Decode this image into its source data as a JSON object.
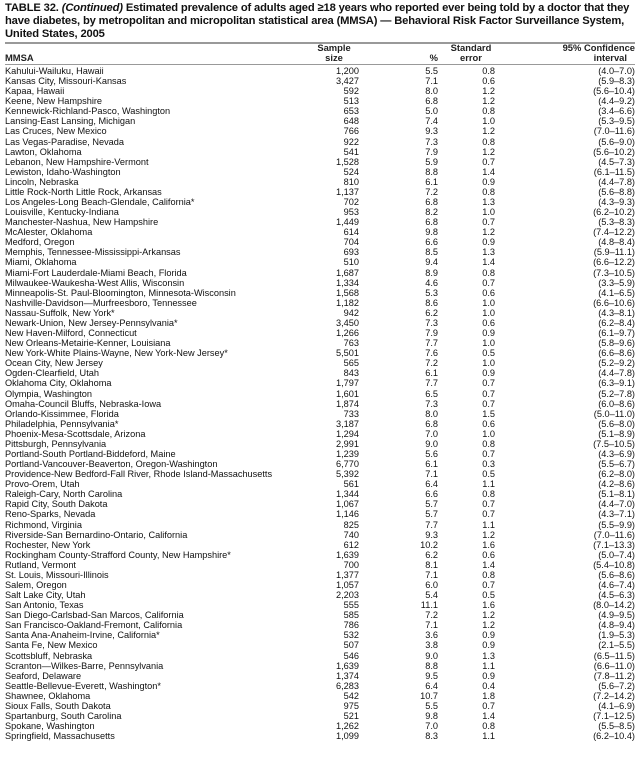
{
  "title": {
    "label": "TABLE 32.",
    "continued": "(Continued)",
    "text": "Estimated prevalence of adults aged ≥18 years who reported ever being told by a doctor that they have diabetes, by metropolitan and micropolitan statistical area (MMSA) — Behavioral Risk Factor Surveillance System, United States, 2005"
  },
  "columns": {
    "mmsa": "MMSA",
    "sample_1": "Sample",
    "sample_2": "size",
    "pct": "%",
    "se_1": "Standard",
    "se_2": "error",
    "ci_1": "95% Confidence",
    "ci_2": "interval"
  },
  "rows": [
    [
      "Kahului-Wailuku, Hawaii",
      "1,200",
      "5.5",
      "0.8",
      "(4.0–7.0)"
    ],
    [
      "Kansas City, Missouri-Kansas",
      "3,427",
      "7.1",
      "0.6",
      "(5.9–8.3)"
    ],
    [
      "Kapaa, Hawaii",
      "592",
      "8.0",
      "1.2",
      "(5.6–10.4)"
    ],
    [
      "Keene, New Hampshire",
      "513",
      "6.8",
      "1.2",
      "(4.4–9.2)"
    ],
    [
      "Kennewick-Richland-Pasco, Washington",
      "653",
      "5.0",
      "0.8",
      "(3.4–6.6)"
    ],
    [
      "Lansing-East Lansing, Michigan",
      "648",
      "7.4",
      "1.0",
      "(5.3–9.5)"
    ],
    [
      "Las Cruces, New Mexico",
      "766",
      "9.3",
      "1.2",
      "(7.0–11.6)"
    ],
    [
      "Las Vegas-Paradise, Nevada",
      "922",
      "7.3",
      "0.8",
      "(5.6–9.0)"
    ],
    [
      "Lawton, Oklahoma",
      "541",
      "7.9",
      "1.2",
      "(5.6–10.2)"
    ],
    [
      "Lebanon, New Hampshire-Vermont",
      "1,528",
      "5.9",
      "0.7",
      "(4.5–7.3)"
    ],
    [
      "Lewiston, Idaho-Washington",
      "524",
      "8.8",
      "1.4",
      "(6.1–11.5)"
    ],
    [
      "Lincoln, Nebraska",
      "810",
      "6.1",
      "0.9",
      "(4.4–7.8)"
    ],
    [
      "Little Rock-North Little Rock, Arkansas",
      "1,137",
      "7.2",
      "0.8",
      "(5.6–8.8)"
    ],
    [
      "Los Angeles-Long Beach-Glendale, California*",
      "702",
      "6.8",
      "1.3",
      "(4.3–9.3)"
    ],
    [
      "Louisville, Kentucky-Indiana",
      "953",
      "8.2",
      "1.0",
      "(6.2–10.2)"
    ],
    [
      "Manchester-Nashua, New Hampshire",
      "1,449",
      "6.8",
      "0.7",
      "(5.3–8.3)"
    ],
    [
      "McAlester, Oklahoma",
      "614",
      "9.8",
      "1.2",
      "(7.4–12.2)"
    ],
    [
      "Medford, Oregon",
      "704",
      "6.6",
      "0.9",
      "(4.8–8.4)"
    ],
    [
      "Memphis, Tennessee-Mississippi-Arkansas",
      "693",
      "8.5",
      "1.3",
      "(5.9–11.1)"
    ],
    [
      "Miami, Oklahoma",
      "510",
      "9.4",
      "1.4",
      "(6.6–12.2)"
    ],
    [
      "Miami-Fort Lauderdale-Miami Beach, Florida",
      "1,687",
      "8.9",
      "0.8",
      "(7.3–10.5)"
    ],
    [
      "Milwaukee-Waukesha-West Allis, Wisconsin",
      "1,334",
      "4.6",
      "0.7",
      "(3.3–5.9)"
    ],
    [
      "Minneapolis-St. Paul-Bloomington, Minnesota-Wisconsin",
      "1,568",
      "5.3",
      "0.6",
      "(4.1–6.5)"
    ],
    [
      "Nashville-Davidson—Murfreesboro, Tennessee",
      "1,182",
      "8.6",
      "1.0",
      "(6.6–10.6)"
    ],
    [
      "Nassau-Suffolk, New York*",
      "942",
      "6.2",
      "1.0",
      "(4.3–8.1)"
    ],
    [
      "Newark-Union, New Jersey-Pennsylvania*",
      "3,450",
      "7.3",
      "0.6",
      "(6.2–8.4)"
    ],
    [
      "New Haven-Milford, Connecticut",
      "1,266",
      "7.9",
      "0.9",
      "(6.1–9.7)"
    ],
    [
      "New Orleans-Metairie-Kenner, Louisiana",
      "763",
      "7.7",
      "1.0",
      "(5.8–9.6)"
    ],
    [
      "New York-White Plains-Wayne, New York-New Jersey*",
      "5,501",
      "7.6",
      "0.5",
      "(6.6–8.6)"
    ],
    [
      "Ocean City, New Jersey",
      "565",
      "7.2",
      "1.0",
      "(5.2–9.2)"
    ],
    [
      "Ogden-Clearfield, Utah",
      "843",
      "6.1",
      "0.9",
      "(4.4–7.8)"
    ],
    [
      "Oklahoma City, Oklahoma",
      "1,797",
      "7.7",
      "0.7",
      "(6.3–9.1)"
    ],
    [
      "Olympia, Washington",
      "1,601",
      "6.5",
      "0.7",
      "(5.2–7.8)"
    ],
    [
      "Omaha-Council Bluffs, Nebraska-Iowa",
      "1,874",
      "7.3",
      "0.7",
      "(6.0–8.6)"
    ],
    [
      "Orlando-Kissimmee, Florida",
      "733",
      "8.0",
      "1.5",
      "(5.0–11.0)"
    ],
    [
      "Philadelphia, Pennsylvania*",
      "3,187",
      "6.8",
      "0.6",
      "(5.6–8.0)"
    ],
    [
      "Phoenix-Mesa-Scottsdale, Arizona",
      "1,294",
      "7.0",
      "1.0",
      "(5.1–8.9)"
    ],
    [
      "Pittsburgh, Pennsylvania",
      "2,991",
      "9.0",
      "0.8",
      "(7.5–10.5)"
    ],
    [
      "Portland-South Portland-Biddeford, Maine",
      "1,239",
      "5.6",
      "0.7",
      "(4.3–6.9)"
    ],
    [
      "Portland-Vancouver-Beaverton, Oregon-Washington",
      "6,770",
      "6.1",
      "0.3",
      "(5.5–6.7)"
    ],
    [
      "Providence-New Bedford-Fall River, Rhode Island-Massachusetts",
      "5,392",
      "7.1",
      "0.5",
      "(6.2–8.0)"
    ],
    [
      "Provo-Orem, Utah",
      "561",
      "6.4",
      "1.1",
      "(4.2–8.6)"
    ],
    [
      "Raleigh-Cary, North Carolina",
      "1,344",
      "6.6",
      "0.8",
      "(5.1–8.1)"
    ],
    [
      "Rapid City, South Dakota",
      "1,067",
      "5.7",
      "0.7",
      "(4.4–7.0)"
    ],
    [
      "Reno-Sparks, Nevada",
      "1,146",
      "5.7",
      "0.7",
      "(4.3–7.1)"
    ],
    [
      "Richmond, Virginia",
      "825",
      "7.7",
      "1.1",
      "(5.5–9.9)"
    ],
    [
      "Riverside-San Bernardino-Ontario, California",
      "740",
      "9.3",
      "1.2",
      "(7.0–11.6)"
    ],
    [
      "Rochester, New York",
      "612",
      "10.2",
      "1.6",
      "(7.1–13.3)"
    ],
    [
      "Rockingham County-Strafford County, New Hampshire*",
      "1,639",
      "6.2",
      "0.6",
      "(5.0–7.4)"
    ],
    [
      "Rutland, Vermont",
      "700",
      "8.1",
      "1.4",
      "(5.4–10.8)"
    ],
    [
      "St. Louis, Missouri-Illinois",
      "1,377",
      "7.1",
      "0.8",
      "(5.6–8.6)"
    ],
    [
      "Salem, Oregon",
      "1,057",
      "6.0",
      "0.7",
      "(4.6–7.4)"
    ],
    [
      "Salt Lake City, Utah",
      "2,203",
      "5.4",
      "0.5",
      "(4.5–6.3)"
    ],
    [
      "San Antonio, Texas",
      "555",
      "11.1",
      "1.6",
      "(8.0–14.2)"
    ],
    [
      "San Diego-Carlsbad-San Marcos, California",
      "585",
      "7.2",
      "1.2",
      "(4.9–9.5)"
    ],
    [
      "San Francisco-Oakland-Fremont, California",
      "786",
      "7.1",
      "1.2",
      "(4.8–9.4)"
    ],
    [
      "Santa Ana-Anaheim-Irvine, California*",
      "532",
      "3.6",
      "0.9",
      "(1.9–5.3)"
    ],
    [
      "Santa Fe, New Mexico",
      "507",
      "3.8",
      "0.9",
      "(2.1–5.5)"
    ],
    [
      "Scottsbluff, Nebraska",
      "546",
      "9.0",
      "1.3",
      "(6.5–11.5)"
    ],
    [
      "Scranton—Wilkes-Barre, Pennsylvania",
      "1,639",
      "8.8",
      "1.1",
      "(6.6–11.0)"
    ],
    [
      "Seaford, Delaware",
      "1,374",
      "9.5",
      "0.9",
      "(7.8–11.2)"
    ],
    [
      "Seattle-Bellevue-Everett, Washington*",
      "6,283",
      "6.4",
      "0.4",
      "(5.6–7.2)"
    ],
    [
      "Shawnee, Oklahoma",
      "542",
      "10.7",
      "1.8",
      "(7.2–14.2)"
    ],
    [
      "Sioux Falls, South Dakota",
      "975",
      "5.5",
      "0.7",
      "(4.1–6.9)"
    ],
    [
      "Spartanburg, South Carolina",
      "521",
      "9.8",
      "1.4",
      "(7.1–12.5)"
    ],
    [
      "Spokane, Washington",
      "1,262",
      "7.0",
      "0.8",
      "(5.5–8.5)"
    ],
    [
      "Springfield, Massachusetts",
      "1,099",
      "8.3",
      "1.1",
      "(6.2–10.4)"
    ]
  ]
}
